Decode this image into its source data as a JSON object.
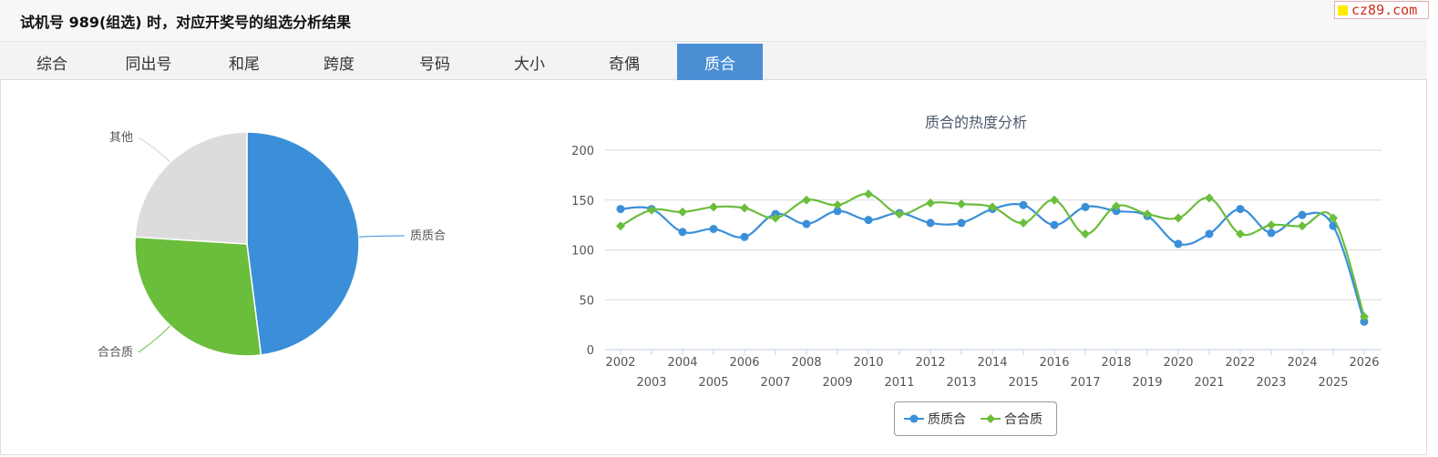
{
  "header": {
    "title": "试机号 989(组选) 时，对应开奖号的组选分析结果",
    "watermark": "cz89.com"
  },
  "tabs": [
    {
      "label": "综合",
      "active": false
    },
    {
      "label": "同出号",
      "active": false
    },
    {
      "label": "和尾",
      "active": false
    },
    {
      "label": "跨度",
      "active": false
    },
    {
      "label": "号码",
      "active": false
    },
    {
      "label": "大小",
      "active": false
    },
    {
      "label": "奇偶",
      "active": false
    },
    {
      "label": "质合",
      "active": true
    }
  ],
  "colors": {
    "blue": "#3a8fd8",
    "green": "#6bbd3c",
    "gray": "#dcdcdc",
    "active_tab": "#4a8fd4"
  },
  "chart_data": [
    {
      "type": "pie",
      "slices": [
        {
          "label": "质质合",
          "value": 48,
          "color": "#3a8fd8"
        },
        {
          "label": "合合质",
          "value": 28,
          "color": "#6bbd3c"
        },
        {
          "label": "其他",
          "value": 24,
          "color": "#dcdcdc"
        }
      ]
    },
    {
      "type": "line",
      "title": "质合的热度分析",
      "x": [
        "2002",
        "2003",
        "2004",
        "2005",
        "2006",
        "2007",
        "2008",
        "2009",
        "2010",
        "2011",
        "2012",
        "2013",
        "2014",
        "2015",
        "2016",
        "2017",
        "2018",
        "2019",
        "2020",
        "2021",
        "2022",
        "2023",
        "2024",
        "2025",
        "2026"
      ],
      "series": [
        {
          "name": "质质合",
          "color": "#3a8fd8",
          "marker": "circle",
          "values": [
            141,
            141,
            118,
            121,
            113,
            136,
            126,
            139,
            130,
            137,
            127,
            127,
            141,
            145,
            125,
            143,
            139,
            134,
            106,
            116,
            141,
            117,
            135,
            124,
            28
          ]
        },
        {
          "name": "合合质",
          "color": "#6bbd3c",
          "marker": "diamond",
          "values": [
            124,
            140,
            138,
            143,
            142,
            132,
            150,
            145,
            156,
            136,
            147,
            146,
            143,
            127,
            150,
            116,
            144,
            136,
            132,
            152,
            116,
            125,
            124,
            132,
            33
          ]
        }
      ],
      "ylim": [
        0,
        200
      ],
      "yticks": [
        0,
        50,
        100,
        150,
        200
      ],
      "grid": true,
      "legend": "bottom"
    }
  ]
}
